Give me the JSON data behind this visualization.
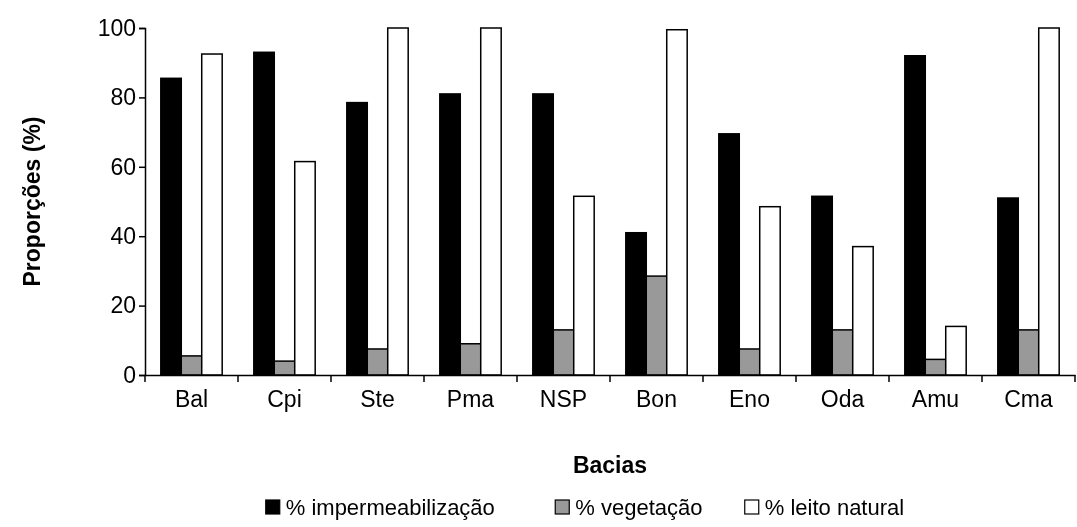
{
  "chart_data": {
    "type": "bar",
    "xlabel": "Bacias",
    "ylabel": "Proporções (%)",
    "categories": [
      "Bal",
      "Cpi",
      "Ste",
      "Pma",
      "NSP",
      "Bon",
      "Eno",
      "Oda",
      "Amu",
      "Cma"
    ],
    "series": [
      {
        "name": "% impermeabilização",
        "color": "#000000",
        "values": [
          85.5,
          93,
          78.5,
          81,
          81,
          41,
          69.5,
          51.5,
          92,
          51
        ]
      },
      {
        "name": "% vegetação",
        "color": "#999999",
        "values": [
          5.5,
          4,
          7.5,
          9,
          13,
          28.5,
          7.5,
          13,
          4.5,
          13
        ]
      },
      {
        "name": "% leito natural",
        "color": "#ffffff",
        "values": [
          92.5,
          61.5,
          100,
          100,
          51.5,
          99.5,
          48.5,
          37,
          14,
          100
        ]
      }
    ],
    "ylim": [
      0,
      100
    ],
    "yticks": [
      0,
      20,
      40,
      60,
      80,
      100
    ],
    "grid": false,
    "legend": "bottom"
  }
}
